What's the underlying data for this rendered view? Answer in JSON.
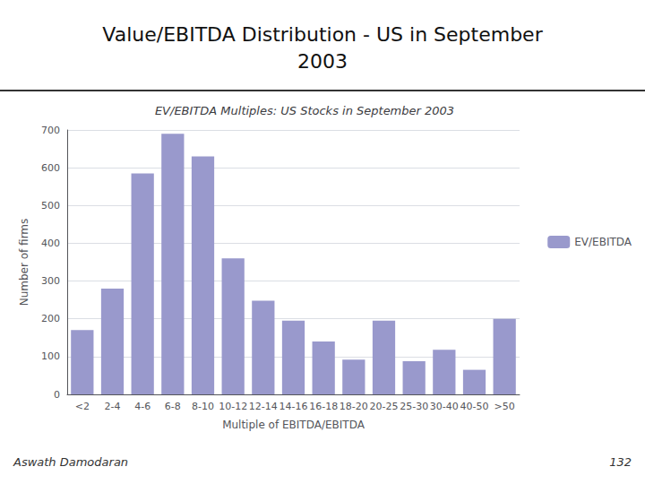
{
  "chart_data": {
    "type": "bar",
    "title": "Value/EBITDA Distribution - US in September\n2003",
    "subtitle": "EV/EBITDA Multiples: US Stocks in September 2003",
    "xlabel": "Multiple of EBITDA/EBITDA",
    "ylabel": "Number of firms",
    "categories": [
      "<2",
      "2-4",
      "4-6",
      "6-8",
      "8-10",
      "10-12",
      "12-14",
      "14-16",
      "16-18",
      "18-20",
      "20-25",
      "25-30",
      "30-40",
      "40-50",
      ">50"
    ],
    "series": [
      {
        "name": "EV/EBITDA",
        "color": "#9999cc",
        "values": [
          170,
          280,
          585,
          690,
          630,
          360,
          248,
          195,
          140,
          92,
          195,
          88,
          118,
          65,
          200
        ]
      }
    ],
    "ylim": [
      0,
      700
    ],
    "yticks": [
      0,
      100,
      200,
      300,
      400,
      500,
      600,
      700
    ],
    "grid": true,
    "legend": "right",
    "annotations": [
      "Aswath Damodaran",
      "132"
    ]
  }
}
